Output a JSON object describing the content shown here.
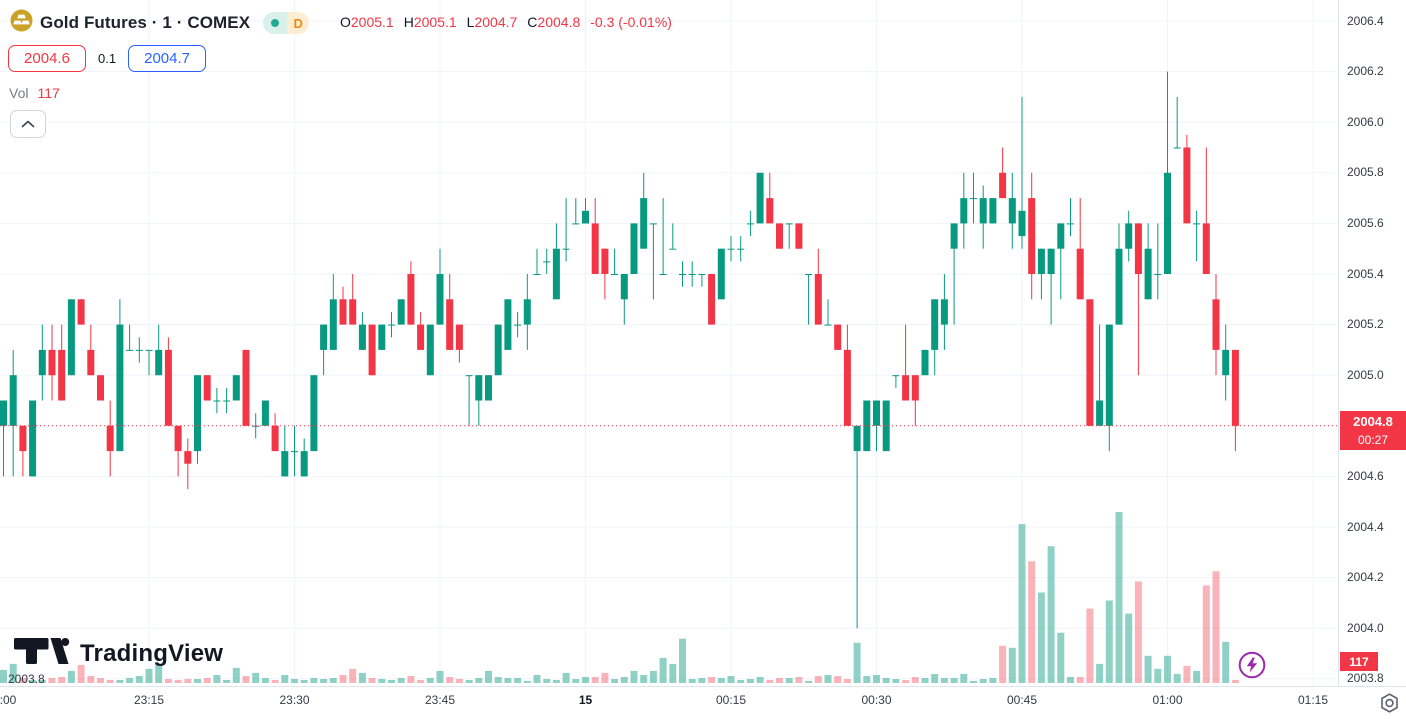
{
  "header": {
    "symbol_title": "Gold Futures · 1 · COMEX",
    "delayed_badge": "D",
    "ohlc": {
      "o_label": "O",
      "o": "2005.1",
      "h_label": "H",
      "h": "2005.1",
      "l_label": "L",
      "l": "2004.7",
      "c_label": "C",
      "c": "2004.8",
      "change": "-0.3 (-0.01%)"
    },
    "bid": "2004.6",
    "spread": "0.1",
    "ask": "2004.7",
    "vol_label": "Vol",
    "vol_value": "117"
  },
  "watermark_text": "TradingView",
  "price_axis": {
    "last_price": "2004.8",
    "countdown": "00:27",
    "volume_label": "117"
  },
  "colors": {
    "up": "#089981",
    "down": "#f23645",
    "vol_up": "rgba(8,153,129,0.45)",
    "vol_down": "rgba(242,54,69,0.38)",
    "grid": "#f0f3fa",
    "axis_text": "#363a45",
    "last_line": "#f23645",
    "accent_blue": "#2962ff",
    "status_dot": "#22ab94",
    "badge_orange": "#ef8914",
    "lightning_purple": "#9c27b0"
  },
  "chart_data": {
    "type": "candlestick",
    "title": "Gold Futures 1-minute COMEX",
    "price_max": 2006.4,
    "price_min": 2003.8,
    "price_ticks": [
      2006.4,
      2006.2,
      2006.0,
      2005.8,
      2005.6,
      2005.4,
      2005.2,
      2005.0,
      2004.8,
      2004.6,
      2004.4,
      2004.2,
      2004.0,
      2003.8
    ],
    "time_ticks": [
      {
        "label": ":00",
        "index": 0,
        "bold": false
      },
      {
        "label": "23:15",
        "index": 15,
        "bold": false
      },
      {
        "label": "23:30",
        "index": 30,
        "bold": false
      },
      {
        "label": "23:45",
        "index": 45,
        "bold": false
      },
      {
        "label": "15",
        "index": 60,
        "bold": true
      },
      {
        "label": "00:15",
        "index": 75,
        "bold": false
      },
      {
        "label": "00:30",
        "index": 90,
        "bold": false
      },
      {
        "label": "00:45",
        "index": 105,
        "bold": false
      },
      {
        "label": "01:00",
        "index": 120,
        "bold": false
      },
      {
        "label": "01:15",
        "index": 135,
        "bold": false
      }
    ],
    "columns": [
      "open",
      "high",
      "low",
      "close",
      "volume"
    ],
    "candles": [
      [
        2004.8,
        2004.9,
        2004.6,
        2004.9,
        507
      ],
      [
        2004.8,
        2005.1,
        2004.6,
        2005.0,
        741
      ],
      [
        2004.8,
        2004.8,
        2004.6,
        2004.7,
        195
      ],
      [
        2004.6,
        2004.9,
        2004.6,
        2004.9,
        117
      ],
      [
        2005.0,
        2005.2,
        2004.9,
        2005.1,
        117
      ],
      [
        2005.1,
        2005.2,
        2004.9,
        2005.0,
        195
      ],
      [
        2005.1,
        2005.2,
        2004.9,
        2004.9,
        234
      ],
      [
        2005.0,
        2005.3,
        2005.0,
        2005.3,
        468
      ],
      [
        2005.3,
        2005.3,
        2005.2,
        2005.2,
        702
      ],
      [
        2005.1,
        2005.2,
        2005.0,
        2005.0,
        273
      ],
      [
        2005.0,
        2005.0,
        2004.9,
        2004.9,
        195
      ],
      [
        2004.8,
        2004.9,
        2004.6,
        2004.7,
        117
      ],
      [
        2004.7,
        2005.3,
        2004.7,
        2005.2,
        117
      ],
      [
        2005.1,
        2005.2,
        2005.1,
        2005.1,
        195
      ],
      [
        2005.1,
        2005.15,
        2005.05,
        2005.1,
        273
      ],
      [
        2005.1,
        2005.1,
        2005.0,
        2005.1,
        546
      ],
      [
        2005.0,
        2005.2,
        2005.0,
        2005.1,
        741
      ],
      [
        2005.1,
        2005.15,
        2004.8,
        2004.8,
        156
      ],
      [
        2004.8,
        2004.8,
        2004.6,
        2004.7,
        117
      ],
      [
        2004.7,
        2004.75,
        2004.55,
        2004.65,
        156
      ],
      [
        2004.7,
        2005.0,
        2004.65,
        2005.0,
        156
      ],
      [
        2005.0,
        2005.0,
        2004.9,
        2004.9,
        195
      ],
      [
        2004.9,
        2004.95,
        2004.85,
        2004.9,
        312
      ],
      [
        2004.9,
        2004.95,
        2004.85,
        2004.9,
        117
      ],
      [
        2004.9,
        2005.0,
        2004.9,
        2005.0,
        585
      ],
      [
        2005.1,
        2005.1,
        2004.8,
        2004.8,
        273
      ],
      [
        2004.8,
        2004.85,
        2004.75,
        2004.8,
        390
      ],
      [
        2004.8,
        2004.9,
        2004.8,
        2004.9,
        195
      ],
      [
        2004.8,
        2004.85,
        2004.7,
        2004.7,
        117
      ],
      [
        2004.6,
        2004.8,
        2004.6,
        2004.7,
        312
      ],
      [
        2004.7,
        2004.8,
        2004.6,
        2004.7,
        156
      ],
      [
        2004.6,
        2004.75,
        2004.6,
        2004.7,
        117
      ],
      [
        2004.7,
        2005.0,
        2004.7,
        2005.0,
        195
      ],
      [
        2005.1,
        2005.2,
        2005.0,
        2005.2,
        156
      ],
      [
        2005.1,
        2005.4,
        2005.1,
        2005.3,
        195
      ],
      [
        2005.3,
        2005.35,
        2005.2,
        2005.2,
        312
      ],
      [
        2005.3,
        2005.4,
        2005.2,
        2005.2,
        546
      ],
      [
        2005.1,
        2005.25,
        2005.1,
        2005.2,
        390
      ],
      [
        2005.2,
        2005.2,
        2005.0,
        2005.0,
        195
      ],
      [
        2005.1,
        2005.2,
        2005.1,
        2005.2,
        156
      ],
      [
        2005.2,
        2005.25,
        2005.15,
        2005.2,
        117
      ],
      [
        2005.2,
        2005.3,
        2005.2,
        2005.3,
        195
      ],
      [
        2005.4,
        2005.45,
        2005.2,
        2005.2,
        273
      ],
      [
        2005.2,
        2005.25,
        2005.1,
        2005.1,
        117
      ],
      [
        2005.0,
        2005.2,
        2005.0,
        2005.2,
        195
      ],
      [
        2005.2,
        2005.5,
        2005.2,
        2005.4,
        468
      ],
      [
        2005.3,
        2005.4,
        2005.1,
        2005.1,
        234
      ],
      [
        2005.2,
        2005.2,
        2005.05,
        2005.1,
        156
      ],
      [
        2005.0,
        2005.0,
        2004.8,
        2005.0,
        117
      ],
      [
        2004.9,
        2005.0,
        2004.8,
        2005.0,
        195
      ],
      [
        2004.9,
        2005.0,
        2004.9,
        2005.0,
        468
      ],
      [
        2005.0,
        2005.2,
        2005.0,
        2005.2,
        234
      ],
      [
        2005.1,
        2005.3,
        2005.1,
        2005.3,
        195
      ],
      [
        2005.2,
        2005.25,
        2005.15,
        2005.2,
        195
      ],
      [
        2005.2,
        2005.4,
        2005.1,
        2005.3,
        78
      ],
      [
        2005.4,
        2005.5,
        2005.4,
        2005.4,
        312
      ],
      [
        2005.45,
        2005.5,
        2005.4,
        2005.45,
        156
      ],
      [
        2005.3,
        2005.6,
        2005.3,
        2005.5,
        117
      ],
      [
        2005.5,
        2005.7,
        2005.45,
        2005.5,
        390
      ],
      [
        2005.6,
        2005.7,
        2005.6,
        2005.6,
        156
      ],
      [
        2005.6,
        2005.7,
        2005.6,
        2005.65,
        234
      ],
      [
        2005.6,
        2005.7,
        2005.4,
        2005.4,
        234
      ],
      [
        2005.5,
        2005.5,
        2005.3,
        2005.4,
        390
      ],
      [
        2005.4,
        2005.5,
        2005.4,
        2005.4,
        156
      ],
      [
        2005.3,
        2005.4,
        2005.2,
        2005.4,
        234
      ],
      [
        2005.4,
        2005.6,
        2005.4,
        2005.6,
        468
      ],
      [
        2005.5,
        2005.8,
        2005.5,
        2005.7,
        312
      ],
      [
        2005.6,
        2005.6,
        2005.3,
        2005.6,
        468
      ],
      [
        2005.4,
        2005.7,
        2005.4,
        2005.4,
        975
      ],
      [
        2005.5,
        2005.6,
        2005.5,
        2005.5,
        741
      ],
      [
        2005.4,
        2005.45,
        2005.35,
        2005.4,
        1716
      ],
      [
        2005.4,
        2005.45,
        2005.35,
        2005.4,
        156
      ],
      [
        2005.4,
        2005.4,
        2005.35,
        2005.4,
        195
      ],
      [
        2005.4,
        2005.4,
        2005.2,
        2005.2,
        234
      ],
      [
        2005.3,
        2005.5,
        2005.3,
        2005.5,
        195
      ],
      [
        2005.5,
        2005.55,
        2005.45,
        2005.5,
        273
      ],
      [
        2005.5,
        2005.55,
        2005.45,
        2005.5,
        117
      ],
      [
        2005.6,
        2005.65,
        2005.55,
        2005.6,
        156
      ],
      [
        2005.6,
        2005.8,
        2005.6,
        2005.8,
        234
      ],
      [
        2005.7,
        2005.8,
        2005.6,
        2005.6,
        117
      ],
      [
        2005.6,
        2005.6,
        2005.5,
        2005.5,
        195
      ],
      [
        2005.6,
        2005.6,
        2005.5,
        2005.6,
        195
      ],
      [
        2005.6,
        2005.6,
        2005.5,
        2005.5,
        234
      ],
      [
        2005.4,
        2005.4,
        2005.2,
        2005.4,
        78
      ],
      [
        2005.4,
        2005.5,
        2005.2,
        2005.2,
        273
      ],
      [
        2005.2,
        2005.3,
        2005.2,
        2005.2,
        312
      ],
      [
        2005.2,
        2005.2,
        2005.1,
        2005.1,
        273
      ],
      [
        2005.1,
        2005.2,
        2004.8,
        2004.8,
        156
      ],
      [
        2004.7,
        2004.8,
        2004.0,
        2004.8,
        1560
      ],
      [
        2004.7,
        2004.9,
        2004.7,
        2004.9,
        273
      ],
      [
        2004.8,
        2004.9,
        2004.7,
        2004.9,
        312
      ],
      [
        2004.7,
        2004.9,
        2004.7,
        2004.9,
        195
      ],
      [
        2005.0,
        2005.0,
        2004.95,
        2005.0,
        156
      ],
      [
        2005.0,
        2005.2,
        2004.9,
        2004.9,
        117
      ],
      [
        2005.0,
        2005.0,
        2004.8,
        2004.9,
        234
      ],
      [
        2005.0,
        2005.1,
        2005.0,
        2005.1,
        195
      ],
      [
        2005.1,
        2005.3,
        2005.0,
        2005.3,
        351
      ],
      [
        2005.2,
        2005.4,
        2005.1,
        2005.3,
        195
      ],
      [
        2005.5,
        2005.6,
        2005.2,
        2005.6,
        195
      ],
      [
        2005.6,
        2005.8,
        2005.5,
        2005.7,
        351
      ],
      [
        2005.7,
        2005.8,
        2005.6,
        2005.7,
        78
      ],
      [
        2005.6,
        2005.75,
        2005.5,
        2005.7,
        156
      ],
      [
        2005.6,
        2005.7,
        2005.6,
        2005.7,
        195
      ],
      [
        2005.8,
        2005.9,
        2005.7,
        2005.7,
        1443
      ],
      [
        2005.6,
        2005.8,
        2005.5,
        2005.7,
        1365
      ],
      [
        2005.55,
        2006.1,
        2005.5,
        2005.65,
        6162
      ],
      [
        2005.7,
        2005.8,
        2005.3,
        2005.4,
        4719
      ],
      [
        2005.4,
        2005.5,
        2005.3,
        2005.5,
        3510
      ],
      [
        2005.4,
        2005.5,
        2005.2,
        2005.5,
        5304
      ],
      [
        2005.5,
        2005.6,
        2005.3,
        2005.6,
        1950
      ],
      [
        2005.6,
        2005.7,
        2005.55,
        2005.6,
        234
      ],
      [
        2005.5,
        2005.7,
        2005.3,
        2005.3,
        234
      ],
      [
        2005.3,
        2005.3,
        2004.8,
        2004.8,
        2886
      ],
      [
        2004.8,
        2005.2,
        2004.8,
        2004.9,
        741
      ],
      [
        2004.8,
        2005.2,
        2004.7,
        2005.2,
        3198
      ],
      [
        2005.2,
        2005.6,
        2005.2,
        2005.5,
        6630
      ],
      [
        2005.5,
        2005.65,
        2005.45,
        2005.6,
        2691
      ],
      [
        2005.6,
        2005.6,
        2005.0,
        2005.4,
        3939
      ],
      [
        2005.3,
        2005.6,
        2005.3,
        2005.5,
        1053
      ],
      [
        2005.4,
        2005.6,
        2005.3,
        2005.4,
        546
      ],
      [
        2005.4,
        2006.2,
        2005.4,
        2005.8,
        1053
      ],
      [
        2005.9,
        2006.1,
        2005.9,
        2005.9,
        351
      ],
      [
        2005.9,
        2005.95,
        2005.6,
        2005.6,
        663
      ],
      [
        2005.6,
        2005.65,
        2005.45,
        2005.6,
        468
      ],
      [
        2005.6,
        2005.9,
        2005.4,
        2005.4,
        3783
      ],
      [
        2005.3,
        2005.4,
        2005.0,
        2005.1,
        4329
      ],
      [
        2005.0,
        2005.2,
        2004.9,
        2005.1,
        1599
      ],
      [
        2005.1,
        2005.1,
        2004.7,
        2004.8,
        117
      ]
    ]
  }
}
